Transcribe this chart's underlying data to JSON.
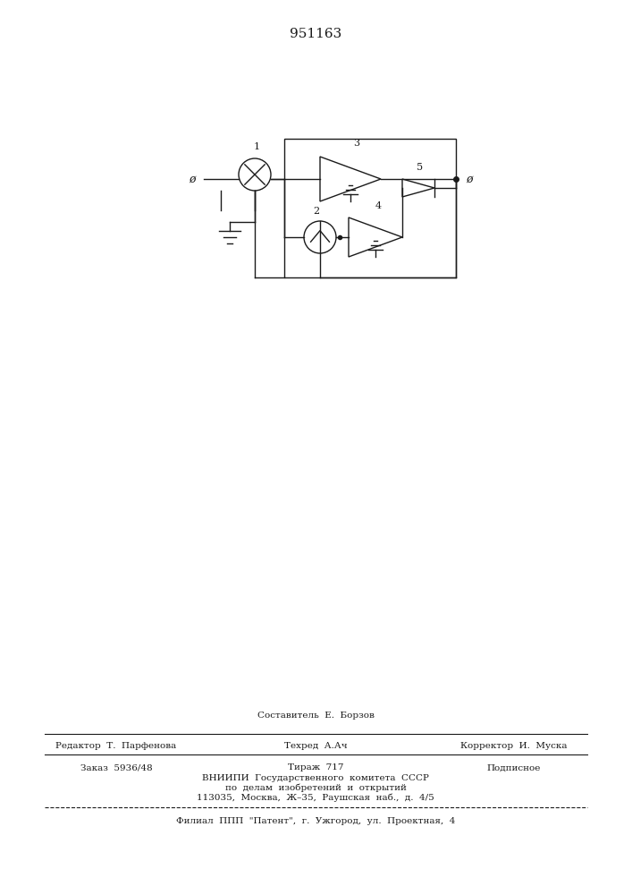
{
  "patent_number": "951163",
  "bg_color": "#ffffff",
  "line_color": "#1a1a1a",
  "patent_fontsize": 11,
  "footer_fontsize": 7.5,
  "footer": {
    "sostavitel": "Составитель  Е.  Борзов",
    "redaktor": "Редактор  Т.  Парфенова",
    "tehred": "Техред  А.Ач",
    "korrektor": "Корректор  И.  Муска",
    "zakaz": "Заказ  5936/48",
    "tirazh": "Тираж  717",
    "podpisnoe": "Подписное",
    "vniip1": "ВНИИПИ  Государственного  комитета  СССР",
    "vniip2": "по  делам  изобретений  и  открытий",
    "vniip3": "113035,  Москва,  Ж–35,  Раушская  наб.,  д.  4/5",
    "filial": "Филиал  ППП  \"Патент\",  г.  Ужгород,  ул.  Проектная,  4"
  }
}
